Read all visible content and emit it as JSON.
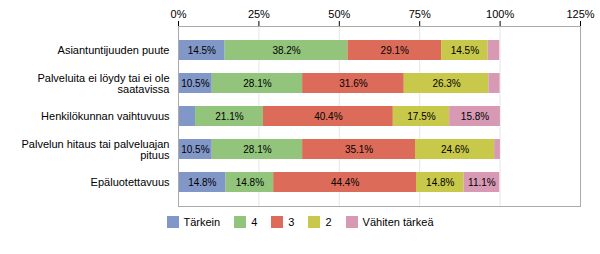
{
  "chart_data": {
    "type": "bar",
    "orientation": "horizontal",
    "stacked": true,
    "categories": [
      "Asiantuntijuuden puute",
      "Palveluita ei löydy tai ei ole\nsaatavissa",
      "Henkilökunnan vaihtuvuus",
      "Palvelun hitaus tai palveluajan\npituus",
      "Epäluotettavuus"
    ],
    "series": [
      {
        "name": "Tärkein",
        "color": "#8097c8",
        "values": [
          14.5,
          10.5,
          5.3,
          10.5,
          14.8
        ],
        "value_labels": [
          "14.5%",
          "10.5%",
          null,
          "10.5%",
          "14.8%"
        ]
      },
      {
        "name": "4",
        "color": "#92c47c",
        "values": [
          38.2,
          28.1,
          21.1,
          28.1,
          14.8
        ],
        "value_labels": [
          "38.2%",
          "28.1%",
          "21.1%",
          "28.1%",
          "14.8%"
        ]
      },
      {
        "name": "3",
        "color": "#dc6b5a",
        "values": [
          29.1,
          31.6,
          40.4,
          35.1,
          44.4
        ],
        "value_labels": [
          "29.1%",
          "31.6%",
          "40.4%",
          "35.1%",
          "44.4%"
        ]
      },
      {
        "name": "2",
        "color": "#c8c84a",
        "values": [
          14.5,
          26.3,
          17.5,
          24.6,
          14.8
        ],
        "value_labels": [
          "14.5%",
          "26.3%",
          "17.5%",
          "24.6%",
          "14.8%"
        ]
      },
      {
        "name": "Vähiten tärkeä",
        "color": "#d899b4",
        "values": [
          3.6,
          3.5,
          15.8,
          1.8,
          11.1
        ],
        "value_labels": [
          null,
          null,
          "15.8%",
          null,
          "11.1%"
        ]
      }
    ],
    "xlim": [
      0,
      125
    ],
    "xticks": [
      {
        "value": 0,
        "label": "0%"
      },
      {
        "value": 25,
        "label": "25%"
      },
      {
        "value": 50,
        "label": "50%"
      },
      {
        "value": 75,
        "label": "75%"
      },
      {
        "value": 100,
        "label": "100%"
      },
      {
        "value": 125,
        "label": "125%"
      }
    ],
    "grid": true,
    "data_labels": true,
    "legend": "bottom"
  }
}
